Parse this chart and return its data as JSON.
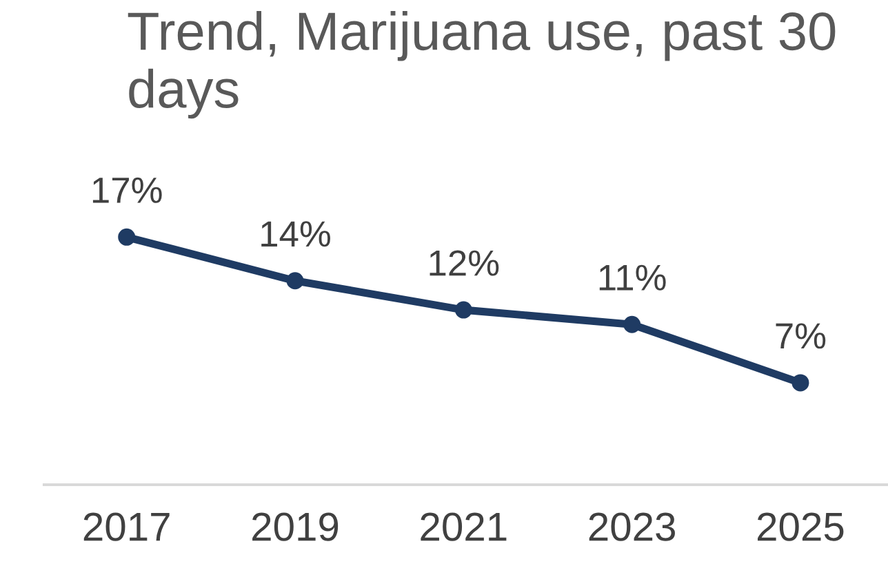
{
  "chart_data": {
    "type": "line",
    "title": "Trend, Marijuana use, past 30 days",
    "categories": [
      "2017",
      "2019",
      "2021",
      "2023",
      "2025"
    ],
    "series": [
      {
        "color": "#1f3b63",
        "values": [
          17,
          14,
          12,
          11,
          7
        ],
        "value_labels": [
          "17%",
          "14%",
          "12%",
          "11%",
          "7%"
        ]
      }
    ],
    "marker": "circle",
    "line_style": "solid",
    "grid": false,
    "legend": false
  }
}
